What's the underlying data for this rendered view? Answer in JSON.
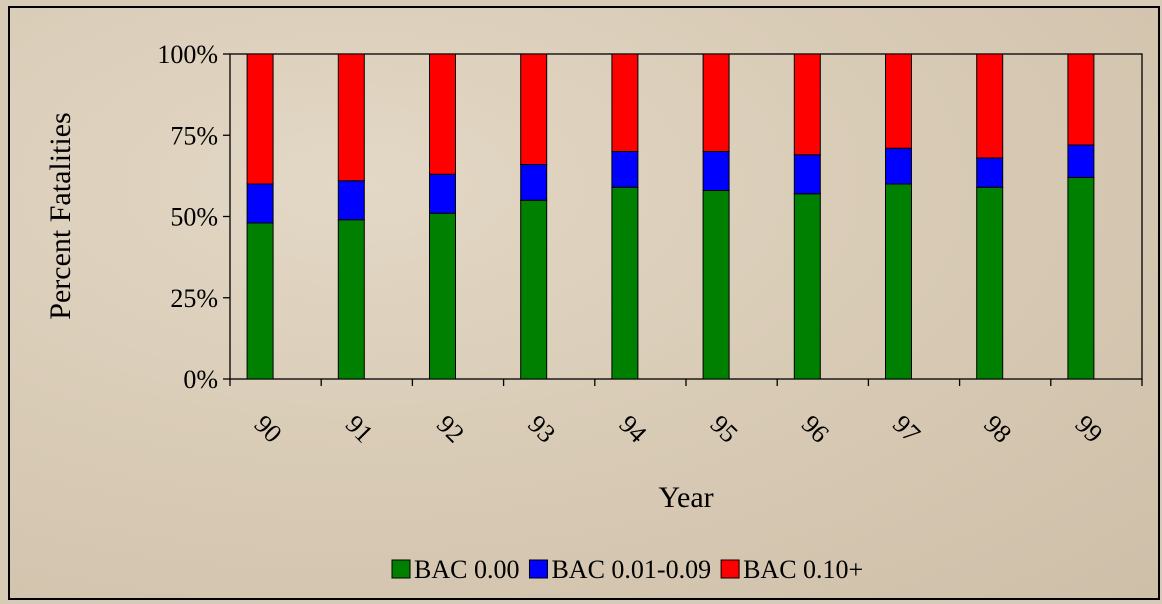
{
  "chart_data": {
    "type": "bar",
    "stacked": true,
    "categories": [
      "90",
      "91",
      "92",
      "93",
      "94",
      "95",
      "96",
      "97",
      "98",
      "99"
    ],
    "series": [
      {
        "name": "BAC 0.00",
        "color": "#008000",
        "values": [
          48,
          49,
          51,
          55,
          59,
          58,
          57,
          60,
          59,
          62
        ]
      },
      {
        "name": "BAC 0.01-0.09",
        "color": "#0000ff",
        "values": [
          12,
          12,
          12,
          11,
          11,
          12,
          12,
          11,
          9,
          10
        ]
      },
      {
        "name": "BAC 0.10+",
        "color": "#ff0000",
        "values": [
          40,
          39,
          37,
          34,
          30,
          30,
          31,
          29,
          32,
          28
        ]
      }
    ],
    "title": "",
    "xlabel": "Year",
    "ylabel": "Percent Fatalities",
    "ylim": [
      0,
      100
    ],
    "yticks": [
      "0%",
      "25%",
      "50%",
      "75%",
      "100%"
    ],
    "legend_position": "bottom",
    "grid": false
  }
}
